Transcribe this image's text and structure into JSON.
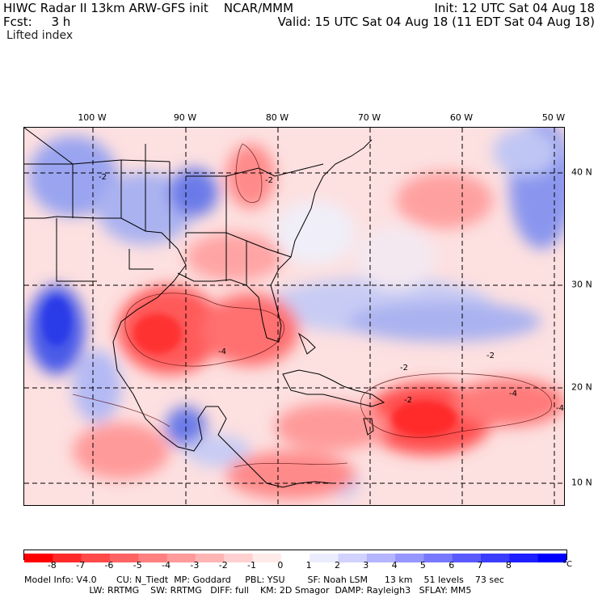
{
  "header": {
    "line1_left": "HIWC Radar II 13km ARW-GFS init    NCAR/MMM",
    "line1_right": "Init: 12 UTC Sat 04 Aug 18",
    "line2_left": "Fcst:     3 h",
    "line2_right": "Valid: 15 UTC Sat 04 Aug 18 (11 EDT Sat 04 Aug 18)",
    "field_name": "Lifted index"
  },
  "map": {
    "lon_labels": [
      "100 W",
      "90 W",
      "80 W",
      "70 W",
      "60 W",
      "50 W"
    ],
    "lat_labels": [
      "40 N",
      "30 N",
      "20 N",
      "10 N"
    ],
    "contour_labels": [
      "-2",
      "-2",
      "-4",
      "-2",
      "-2",
      "-4",
      "-2",
      "-4"
    ]
  },
  "colorbar": {
    "ticks": [
      "-8",
      "-7",
      "-6",
      "-5",
      "-4",
      "-3",
      "-2",
      "-1",
      "0",
      "1",
      "2",
      "3",
      "4",
      "5",
      "6",
      "7",
      "8"
    ],
    "unit": "°C",
    "colors": [
      "#ff0000",
      "#ff2a2a",
      "#ff4a4a",
      "#ff6464",
      "#ff8080",
      "#ff9a9a",
      "#ffb4b4",
      "#ffd0d0",
      "#ffeaea",
      "#ffffff",
      "#ececff",
      "#d2d2ff",
      "#b4b4ff",
      "#9696ff",
      "#7878ff",
      "#5a5aff",
      "#3c3cff",
      "#1e1eff",
      "#0000ff"
    ]
  },
  "footer": {
    "line1": "Model Info: V4.0       CU: N_Tiedt  MP: Goddard     PBL: YSU        SF: Noah LSM      13 km    51 levels    73 sec",
    "line2": "                       LW: RRTMG    SW: RRTMG   DIFF: full    KM: 2D Smagor  DAMP: Rayleigh3   SFLAY: MM5"
  }
}
